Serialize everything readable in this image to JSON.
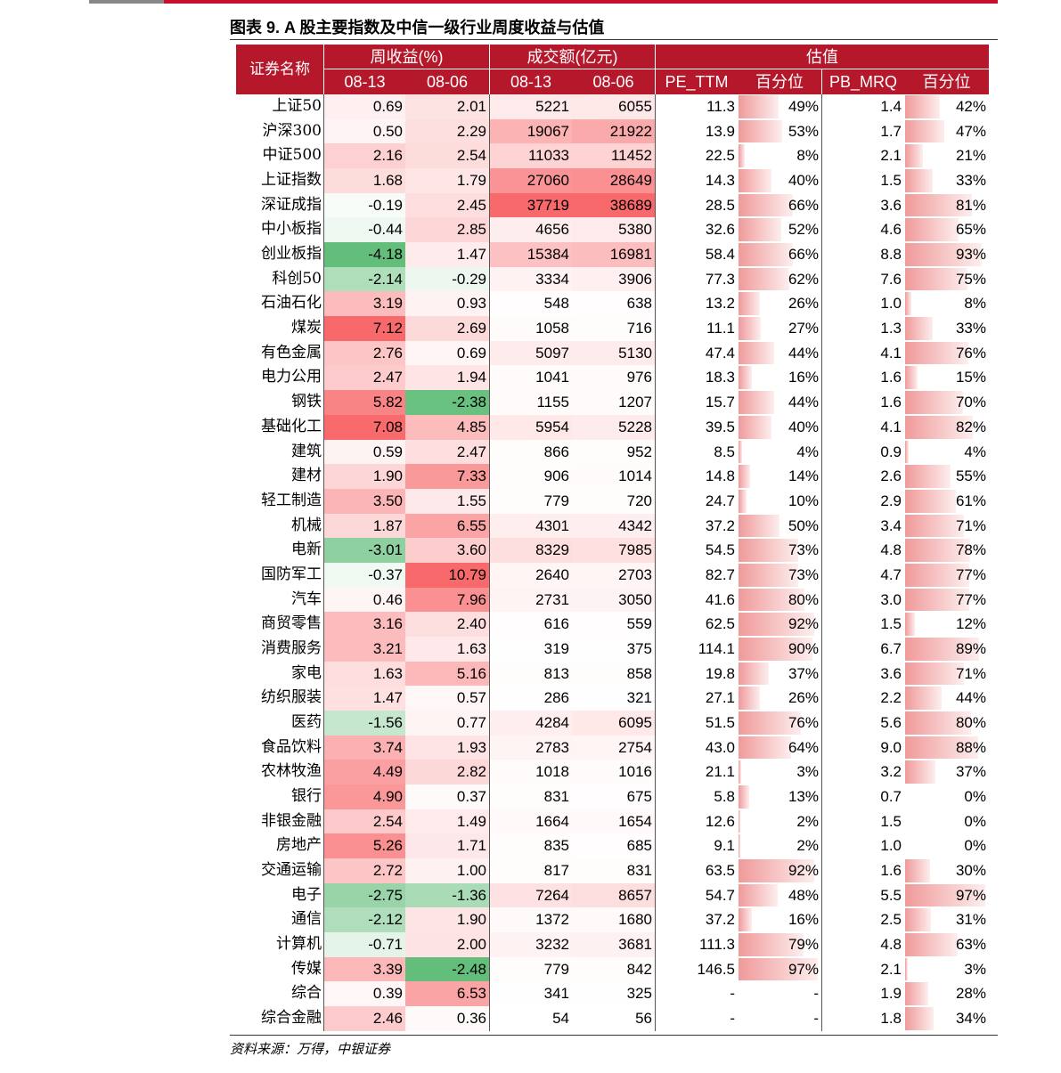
{
  "title": "图表 9. A 股主要指数及中信一级行业周度收益与估值",
  "table": {
    "header": {
      "name": "证券名称",
      "groups": [
        "周收益(%)",
        "成交额(亿元)",
        "估值"
      ],
      "columns": [
        "08-13",
        "08-06",
        "08-13",
        "08-06",
        "PE_TTM",
        "百分位",
        "PB_MRQ",
        "百分位"
      ]
    },
    "rows": [
      [
        "上证50",
        "0.69",
        "2.01",
        "5221",
        "6055",
        "11.3",
        "49%",
        "1.4",
        "42%"
      ],
      [
        "沪深300",
        "0.50",
        "2.29",
        "19067",
        "21922",
        "13.9",
        "53%",
        "1.7",
        "47%"
      ],
      [
        "中证500",
        "2.16",
        "2.54",
        "11033",
        "11452",
        "22.5",
        "8%",
        "2.1",
        "21%"
      ],
      [
        "上证指数",
        "1.68",
        "1.79",
        "27060",
        "28649",
        "14.3",
        "40%",
        "1.5",
        "33%"
      ],
      [
        "深证成指",
        "-0.19",
        "2.45",
        "37719",
        "38689",
        "28.5",
        "66%",
        "3.6",
        "81%"
      ],
      [
        "中小板指",
        "-0.44",
        "2.85",
        "4656",
        "5380",
        "32.6",
        "52%",
        "4.6",
        "65%"
      ],
      [
        "创业板指",
        "-4.18",
        "1.47",
        "15384",
        "16981",
        "58.4",
        "66%",
        "8.8",
        "93%"
      ],
      [
        "科创50",
        "-2.14",
        "-0.29",
        "3334",
        "3906",
        "77.3",
        "62%",
        "7.6",
        "75%"
      ],
      [
        "石油石化",
        "3.19",
        "0.93",
        "548",
        "638",
        "13.2",
        "26%",
        "1.0",
        "8%"
      ],
      [
        "煤炭",
        "7.12",
        "2.69",
        "1058",
        "716",
        "11.1",
        "27%",
        "1.3",
        "33%"
      ],
      [
        "有色金属",
        "2.76",
        "0.69",
        "5097",
        "5130",
        "47.4",
        "44%",
        "4.1",
        "76%"
      ],
      [
        "电力公用",
        "2.47",
        "1.94",
        "1041",
        "976",
        "18.3",
        "16%",
        "1.6",
        "15%"
      ],
      [
        "钢铁",
        "5.82",
        "-2.38",
        "1155",
        "1207",
        "15.7",
        "44%",
        "1.6",
        "70%"
      ],
      [
        "基础化工",
        "7.08",
        "4.85",
        "5954",
        "5228",
        "39.5",
        "40%",
        "4.1",
        "82%"
      ],
      [
        "建筑",
        "0.59",
        "2.47",
        "866",
        "952",
        "8.5",
        "4%",
        "0.9",
        "4%"
      ],
      [
        "建材",
        "1.90",
        "7.33",
        "906",
        "1014",
        "14.8",
        "14%",
        "2.6",
        "55%"
      ],
      [
        "轻工制造",
        "3.50",
        "1.55",
        "779",
        "720",
        "24.7",
        "10%",
        "2.9",
        "61%"
      ],
      [
        "机械",
        "1.87",
        "6.55",
        "4301",
        "4342",
        "37.2",
        "50%",
        "3.4",
        "71%"
      ],
      [
        "电新",
        "-3.01",
        "3.60",
        "8329",
        "7985",
        "54.5",
        "73%",
        "4.8",
        "78%"
      ],
      [
        "国防军工",
        "-0.37",
        "10.79",
        "2640",
        "2703",
        "82.7",
        "73%",
        "4.7",
        "77%"
      ],
      [
        "汽车",
        "0.46",
        "7.96",
        "2731",
        "3050",
        "41.6",
        "80%",
        "3.0",
        "77%"
      ],
      [
        "商贸零售",
        "3.16",
        "2.40",
        "616",
        "559",
        "62.5",
        "92%",
        "1.5",
        "12%"
      ],
      [
        "消费服务",
        "3.21",
        "1.63",
        "319",
        "375",
        "114.1",
        "90%",
        "6.7",
        "89%"
      ],
      [
        "家电",
        "1.63",
        "5.16",
        "813",
        "858",
        "19.8",
        "37%",
        "3.6",
        "71%"
      ],
      [
        "纺织服装",
        "1.47",
        "0.57",
        "286",
        "321",
        "27.1",
        "26%",
        "2.2",
        "44%"
      ],
      [
        "医药",
        "-1.56",
        "0.77",
        "4284",
        "6095",
        "51.5",
        "76%",
        "5.6",
        "80%"
      ],
      [
        "食品饮料",
        "3.74",
        "1.93",
        "2783",
        "2754",
        "43.0",
        "64%",
        "9.0",
        "88%"
      ],
      [
        "农林牧渔",
        "4.49",
        "2.82",
        "1018",
        "1016",
        "21.1",
        "3%",
        "3.2",
        "37%"
      ],
      [
        "银行",
        "4.90",
        "0.37",
        "831",
        "675",
        "5.8",
        "13%",
        "0.7",
        "0%"
      ],
      [
        "非银金融",
        "2.54",
        "1.49",
        "1664",
        "1654",
        "12.6",
        "2%",
        "1.5",
        "0%"
      ],
      [
        "房地产",
        "5.26",
        "1.71",
        "835",
        "685",
        "9.1",
        "2%",
        "1.0",
        "0%"
      ],
      [
        "交通运输",
        "2.72",
        "1.00",
        "817",
        "831",
        "63.5",
        "92%",
        "1.6",
        "30%"
      ],
      [
        "电子",
        "-2.75",
        "-1.36",
        "7264",
        "8657",
        "54.7",
        "48%",
        "5.5",
        "97%"
      ],
      [
        "通信",
        "-2.12",
        "1.90",
        "1372",
        "1680",
        "37.2",
        "16%",
        "2.5",
        "31%"
      ],
      [
        "计算机",
        "-0.71",
        "2.00",
        "3232",
        "3681",
        "111.3",
        "79%",
        "4.8",
        "63%"
      ],
      [
        "传媒",
        "3.39",
        "-2.48",
        "779",
        "842",
        "146.5",
        "97%",
        "2.1",
        "3%"
      ],
      [
        "综合",
        "0.39",
        "6.53",
        "341",
        "325",
        "-",
        "-",
        "1.9",
        "28%"
      ],
      [
        "综合金融",
        "2.46",
        "0.36",
        "54",
        "56",
        "-",
        "-",
        "1.8",
        "34%"
      ]
    ]
  },
  "source": "资料来源：万得，中银证券"
}
